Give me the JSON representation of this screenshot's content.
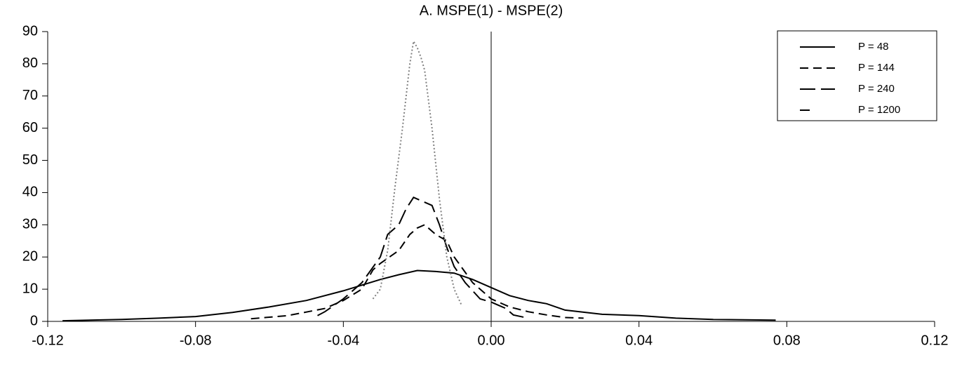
{
  "chart_data": {
    "type": "line",
    "title": "A.  MSPE(1) - MSPE(2)",
    "xlim": [
      -0.12,
      0.12
    ],
    "xticks": [
      -0.12,
      -0.08,
      -0.04,
      {
        "value": 0,
        "label": "0.00"
      },
      0.04,
      0.08,
      0.12
    ],
    "ylim": [
      0,
      90
    ],
    "yticks": [
      0,
      10,
      20,
      30,
      40,
      50,
      60,
      70,
      80,
      90
    ],
    "grid": false,
    "legend": "top-right",
    "zero_line": true,
    "series": [
      {
        "name": "P = 48",
        "color": "#000000",
        "style": "solid",
        "x": [
          -0.116,
          -0.1,
          -0.09,
          -0.08,
          -0.07,
          -0.06,
          -0.05,
          -0.04,
          -0.03,
          -0.025,
          -0.02,
          -0.015,
          -0.01,
          -0.005,
          0,
          0.005,
          0.01,
          0.015,
          0.02,
          0.03,
          0.04,
          0.05,
          0.06,
          0.077
        ],
        "values": [
          0.2,
          0.6,
          1.0,
          1.5,
          2.8,
          4.5,
          6.5,
          9.5,
          13,
          14.5,
          15.8,
          15.5,
          15,
          13,
          10.5,
          8,
          6.5,
          5.5,
          3.5,
          2.2,
          1.8,
          1.0,
          0.6,
          0.4
        ]
      },
      {
        "name": "P = 144",
        "color": "#000000",
        "style": "dashed",
        "x": [
          -0.065,
          -0.055,
          -0.045,
          -0.04,
          -0.035,
          -0.032,
          -0.03,
          -0.025,
          -0.022,
          -0.02,
          -0.018,
          -0.015,
          -0.012,
          -0.01,
          -0.005,
          0,
          0.005,
          0.01,
          0.015,
          0.02,
          0.025
        ],
        "values": [
          0.8,
          1.8,
          4,
          6.5,
          10,
          16,
          18,
          22,
          27,
          29,
          30,
          27,
          25,
          20,
          12,
          7,
          4.5,
          3,
          2,
          1.2,
          1.0
        ]
      },
      {
        "name": "P = 240",
        "color": "#000000",
        "style": "longdash",
        "x": [
          -0.047,
          -0.045,
          -0.04,
          -0.035,
          -0.03,
          -0.028,
          -0.025,
          -0.023,
          -0.021,
          -0.018,
          -0.016,
          -0.014,
          -0.012,
          -0.01,
          -0.007,
          -0.003,
          0,
          0.002,
          0.004,
          0.006,
          0.01
        ],
        "values": [
          1.8,
          3,
          7,
          12,
          20,
          27,
          30,
          35,
          38.5,
          37,
          36,
          30,
          23,
          17,
          12,
          7,
          6,
          5,
          4,
          2,
          1
        ]
      },
      {
        "name": "P = 1200",
        "color": "#808080",
        "style": "dotted",
        "x": [
          -0.032,
          -0.03,
          -0.028,
          -0.026,
          -0.024,
          -0.022,
          -0.021,
          -0.02,
          -0.019,
          -0.018,
          -0.016,
          -0.014,
          -0.012,
          -0.01,
          -0.008
        ],
        "values": [
          7,
          10,
          22,
          42,
          60,
          80,
          87,
          85,
          82,
          78,
          60,
          38,
          20,
          10,
          5
        ]
      }
    ]
  }
}
